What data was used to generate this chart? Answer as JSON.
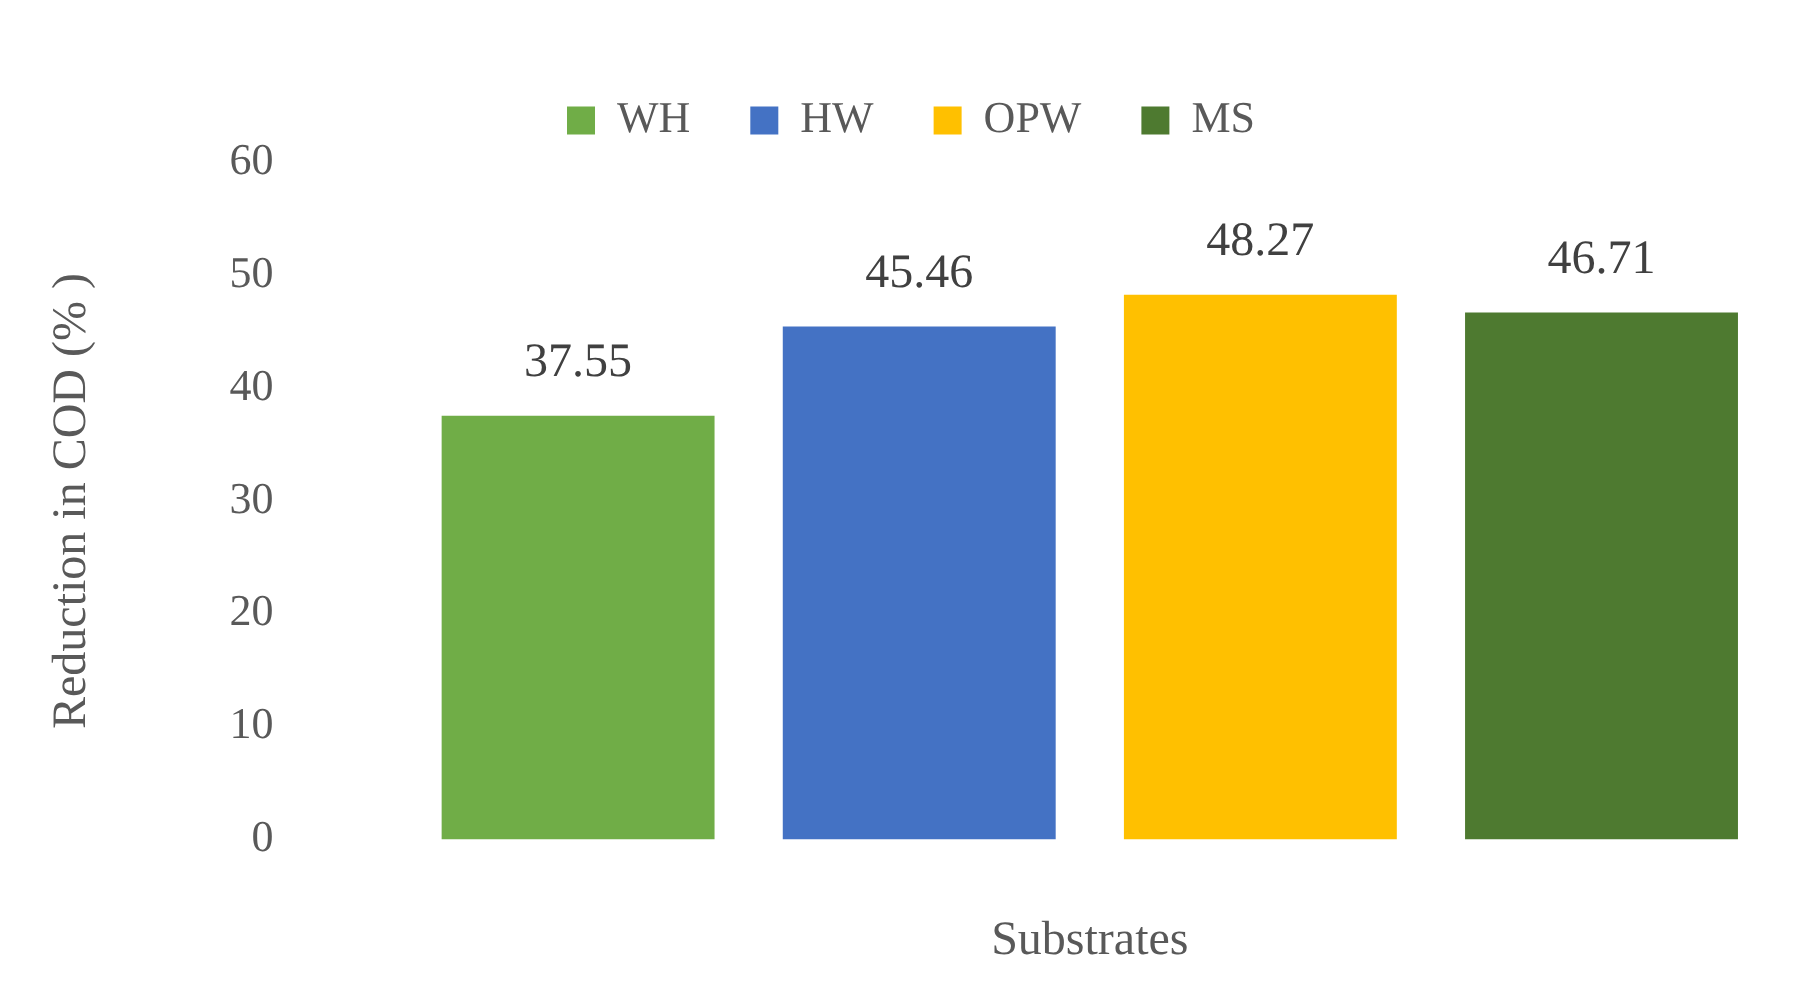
{
  "chart_data": {
    "type": "bar",
    "xlabel": "Substrates",
    "ylabel": "Reduction in COD (% )",
    "categories": [
      null
    ],
    "series": [
      {
        "name": "WH",
        "color": "#70ad47",
        "values": [
          37.55
        ]
      },
      {
        "name": "HW",
        "color": "#4472c4",
        "values": [
          45.46
        ]
      },
      {
        "name": "OPW",
        "color": "#ffc000",
        "values": [
          48.27
        ]
      },
      {
        "name": "MS",
        "color": "#4e7a30",
        "values": [
          46.71
        ]
      }
    ],
    "ylim": [
      0,
      60
    ],
    "yticks": [
      0,
      10,
      20,
      30,
      40,
      50,
      60
    ],
    "grid": false,
    "legend": "top",
    "data_labels": true
  }
}
